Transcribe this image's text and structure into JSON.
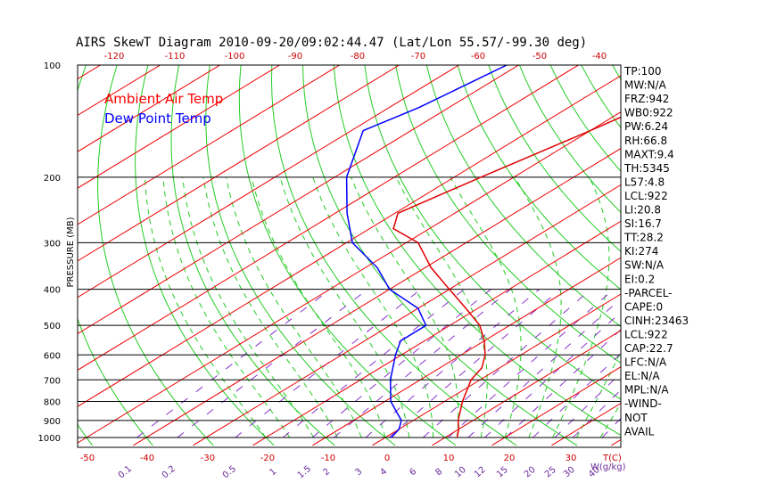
{
  "chart_data": {
    "type": "line",
    "title": "AIRS SkewT Diagram 2010-09-20/09:02:44.47 (Lat/Lon 55.57/-99.30 deg)",
    "ylabel": "PRESSURE (MB)",
    "y_scale": "log",
    "ylim": [
      1000,
      100
    ],
    "x_axis_label": "T(C)",
    "mixing_ratio_label": "W(g/kg)",
    "pressure_ticks": [
      100,
      200,
      300,
      400,
      500,
      600,
      700,
      800,
      900,
      1000
    ],
    "temperature_ticks_bottom": [
      -50,
      -40,
      -30,
      -20,
      -10,
      0,
      10,
      20,
      30
    ],
    "temperature_ticks_top": [
      -120,
      -110,
      -100,
      -90,
      -80,
      -70,
      -60,
      -50,
      -40
    ],
    "mixing_ratio_ticks": [
      "0.1",
      "0.2",
      "0.5",
      "1",
      "1.5",
      "2",
      "3",
      "4",
      "6",
      "8",
      "10",
      "12",
      "15",
      "20",
      "25",
      "30",
      "40"
    ],
    "legend": [
      {
        "name": "Ambient Air Temp",
        "color": "#ff0000"
      },
      {
        "name": "Dew Point Temp",
        "color": "#0000ff"
      }
    ],
    "series": [
      {
        "name": "Ambient Air Temp",
        "color": "#e00000",
        "points": [
          {
            "p": 100,
            "t": -43
          },
          {
            "p": 150,
            "t": -50
          },
          {
            "p": 200,
            "t": -55.5
          },
          {
            "p": 250,
            "t": -59.5
          },
          {
            "p": 275,
            "t": -56
          },
          {
            "p": 300,
            "t": -48
          },
          {
            "p": 350,
            "t": -39
          },
          {
            "p": 400,
            "t": -30
          },
          {
            "p": 450,
            "t": -22
          },
          {
            "p": 500,
            "t": -15
          },
          {
            "p": 550,
            "t": -10
          },
          {
            "p": 600,
            "t": -6
          },
          {
            "p": 650,
            "t": -3
          },
          {
            "p": 700,
            "t": -1.5
          },
          {
            "p": 800,
            "t": 3
          },
          {
            "p": 900,
            "t": 7.5
          },
          {
            "p": 950,
            "t": 10
          },
          {
            "p": 1000,
            "t": 12
          }
        ]
      },
      {
        "name": "Dew Point Temp",
        "color": "#0000ff",
        "points": [
          {
            "p": 100,
            "t": -82
          },
          {
            "p": 130,
            "t": -85
          },
          {
            "p": 150,
            "t": -88
          },
          {
            "p": 200,
            "t": -78
          },
          {
            "p": 250,
            "t": -68
          },
          {
            "p": 300,
            "t": -59
          },
          {
            "p": 350,
            "t": -48
          },
          {
            "p": 400,
            "t": -40
          },
          {
            "p": 450,
            "t": -30
          },
          {
            "p": 500,
            "t": -24
          },
          {
            "p": 550,
            "t": -24
          },
          {
            "p": 600,
            "t": -21
          },
          {
            "p": 700,
            "t": -15
          },
          {
            "p": 800,
            "t": -9
          },
          {
            "p": 900,
            "t": -2
          },
          {
            "p": 950,
            "t": 0
          },
          {
            "p": 1000,
            "t": 1
          }
        ]
      }
    ],
    "indices": [
      "TP:100",
      "MW:N/A",
      "FRZ:942",
      "WB0:922",
      "PW:6.24",
      "RH:66.8",
      "MAXT:9.4",
      "TH:5345",
      "L57:4.8",
      "LCL:922",
      "LI:20.8",
      "SI:16.7",
      "TT:28.2",
      "KI:274",
      "SW:N/A",
      "EI:0.2",
      "-PARCEL-",
      "CAPE:0",
      "CINH:23463",
      "LCL:922",
      "CAP:22.7",
      "LFC:N/A",
      "EL:N/A",
      "MPL:N/A",
      "-WIND-",
      "NOT",
      "AVAIL"
    ]
  }
}
